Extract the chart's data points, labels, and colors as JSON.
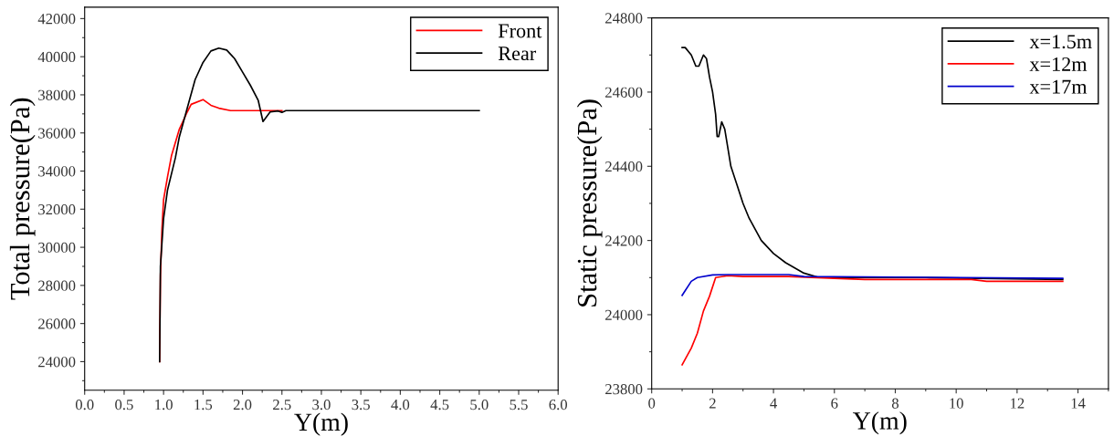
{
  "chart_data": [
    {
      "type": "line",
      "xlabel": "Y(m)",
      "ylabel": "Total pressure(Pa)",
      "xlim": [
        0,
        6
      ],
      "ylim": [
        22500,
        42600
      ],
      "xticks": [
        {
          "value": 0,
          "label": "0.0"
        },
        {
          "value": 0.5,
          "label": "0.5"
        },
        {
          "value": 1,
          "label": "1.0"
        },
        {
          "value": 1.5,
          "label": "1.5"
        },
        {
          "value": 2,
          "label": "2.0"
        },
        {
          "value": 2.5,
          "label": "2.5"
        },
        {
          "value": 3,
          "label": "3.0"
        },
        {
          "value": 3.5,
          "label": "3.5"
        },
        {
          "value": 4,
          "label": "4.0"
        },
        {
          "value": 4.5,
          "label": "4.5"
        },
        {
          "value": 5,
          "label": "5.0"
        },
        {
          "value": 5.5,
          "label": "5.5"
        },
        {
          "value": 6,
          "label": "6.0"
        }
      ],
      "yticks": [
        24000,
        26000,
        28000,
        30000,
        32000,
        34000,
        36000,
        38000,
        40000,
        42000
      ],
      "legend": "top right",
      "grid": false,
      "marker": "none",
      "line_style": "solid",
      "series": [
        {
          "name": "Front",
          "color": "#ff0000",
          "x": [
            0.95,
            0.96,
            0.98,
            1.0,
            1.05,
            1.1,
            1.2,
            1.3,
            1.35,
            1.5,
            1.6,
            1.7,
            1.85,
            2.0,
            2.5
          ],
          "values": [
            24000,
            28500,
            31000,
            32500,
            33700,
            34800,
            36200,
            37100,
            37500,
            37750,
            37450,
            37300,
            37170,
            37170,
            37170
          ]
        },
        {
          "name": "Rear",
          "color": "#000000",
          "x": [
            0.95,
            0.96,
            1.0,
            1.05,
            1.15,
            1.2,
            1.3,
            1.4,
            1.5,
            1.6,
            1.7,
            1.8,
            1.9,
            2.0,
            2.1,
            2.2,
            2.26,
            2.35,
            2.45,
            2.5,
            2.55,
            5.0
          ],
          "values": [
            24000,
            29000,
            31500,
            33000,
            34700,
            35800,
            37300,
            38800,
            39700,
            40300,
            40450,
            40350,
            39900,
            39200,
            38500,
            37700,
            36600,
            37100,
            37150,
            37080,
            37170,
            37170
          ]
        }
      ]
    },
    {
      "type": "line",
      "xlabel": "Y(m)",
      "ylabel": "Static pressure(Pa)",
      "xlim": [
        0,
        15
      ],
      "ylim": [
        23800,
        24800
      ],
      "xticks": [
        0,
        2,
        4,
        6,
        8,
        10,
        12,
        14
      ],
      "yticks": [
        23800,
        24000,
        24200,
        24400,
        24600,
        24800
      ],
      "legend": "top right",
      "grid": false,
      "marker": "none",
      "line_style": "solid",
      "series": [
        {
          "name": "x=1.5m",
          "color": "#000000",
          "x": [
            1.0,
            1.1,
            1.3,
            1.45,
            1.55,
            1.7,
            1.8,
            1.9,
            2.0,
            2.1,
            2.15,
            2.2,
            2.3,
            2.4,
            2.6,
            2.8,
            3.0,
            3.2,
            3.6,
            4.0,
            4.4,
            5.0,
            5.5,
            7,
            9,
            13.5
          ],
          "values": [
            24720,
            24720,
            24700,
            24670,
            24670,
            24700,
            24690,
            24640,
            24600,
            24540,
            24480,
            24480,
            24520,
            24500,
            24400,
            24350,
            24300,
            24260,
            24200,
            24165,
            24140,
            24112,
            24100,
            24100,
            24100,
            24095
          ]
        },
        {
          "name": "x=12m",
          "color": "#ff0000",
          "x": [
            1.0,
            1.3,
            1.5,
            1.7,
            1.9,
            2.1,
            2.5,
            3.0,
            4.5,
            6.0,
            7.0,
            10.5,
            11.0,
            13.5
          ],
          "values": [
            23865,
            23910,
            23950,
            24010,
            24050,
            24100,
            24105,
            24103,
            24103,
            24098,
            24095,
            24095,
            24090,
            24090
          ]
        },
        {
          "name": "x=17m",
          "color": "#0000cc",
          "x": [
            1.0,
            1.3,
            1.5,
            2.0,
            2.5,
            4.5,
            5.0,
            7.0,
            13.5
          ],
          "values": [
            24052,
            24090,
            24100,
            24107,
            24108,
            24108,
            24103,
            24102,
            24098
          ]
        }
      ]
    }
  ]
}
